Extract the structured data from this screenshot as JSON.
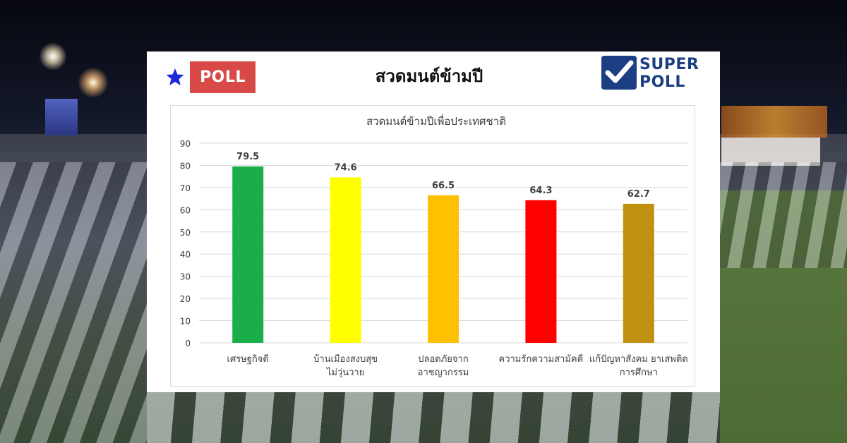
{
  "header": {
    "poll_label": "POLL",
    "title": "สวดมนต์ข้ามปี",
    "logo_super": "SUPER",
    "logo_poll": "POLL"
  },
  "icons": {
    "star": "star-icon",
    "check": "check-icon"
  },
  "colors": {
    "poll_badge": "#d84a47",
    "star": "#1a2bd6",
    "logo_blue": "#1c3f84"
  },
  "chart_data": {
    "type": "bar",
    "title": "สวดมนต์ข้ามปีเพื่อประเทศชาติ",
    "xlabel": "",
    "ylabel": "",
    "ylim": [
      0,
      90
    ],
    "yticks": [
      0,
      10,
      20,
      30,
      40,
      50,
      60,
      70,
      80,
      90
    ],
    "grid": true,
    "categories": [
      [
        "เศรษฐกิจดี"
      ],
      [
        "บ้านเมืองสงบสุข",
        "ไม่วุ่นวาย"
      ],
      [
        "ปลอดภัยจาก",
        "อาชญากรรม"
      ],
      [
        "ความรักความสามัคคี"
      ],
      [
        "แก้ปัญหาสังคม ยาเสพติด",
        "การศึกษา"
      ]
    ],
    "values": [
      79.5,
      74.6,
      66.5,
      64.3,
      62.7
    ],
    "value_labels": [
      "79.5",
      "74.6",
      "66.5",
      "64.3",
      "62.7"
    ],
    "bar_colors": [
      "#1aae4a",
      "#ffff00",
      "#ffc000",
      "#ff0000",
      "#c09010"
    ]
  }
}
